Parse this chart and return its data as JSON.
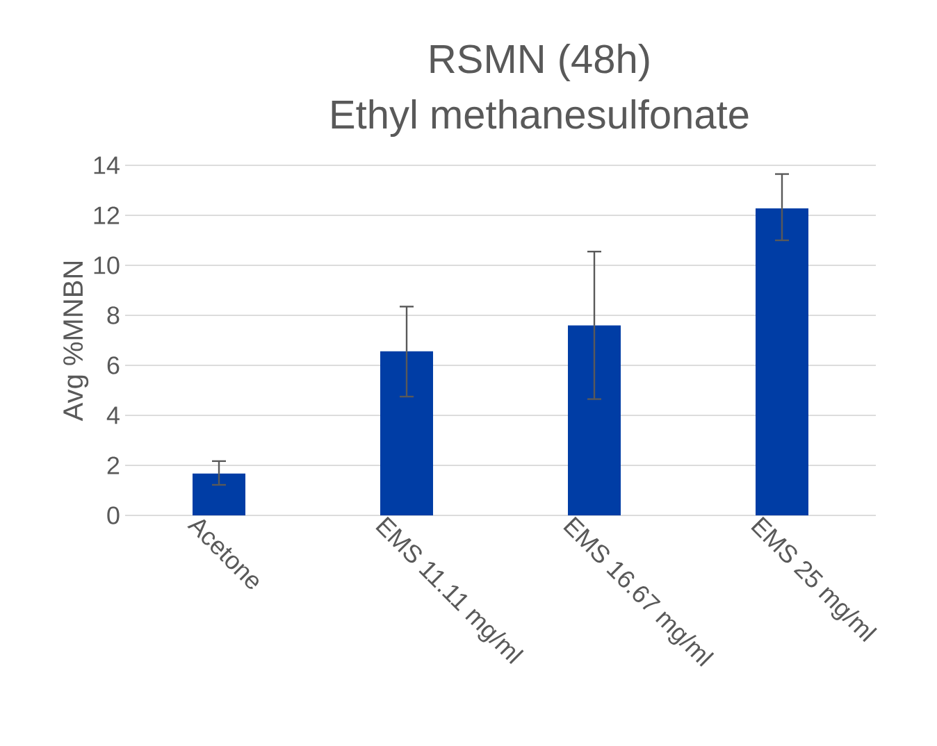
{
  "chart_data": {
    "type": "bar",
    "title": "RSMN (48h)",
    "subtitle": "Ethyl methanesulfonate",
    "ylabel": "Avg %MNBN",
    "categories": [
      "Acetone",
      "EMS 11.11 mg/ml",
      "EMS 16.67 mg/ml",
      "EMS 25 mg/ml"
    ],
    "values": [
      1.67,
      6.56,
      7.6,
      12.28
    ],
    "errors": [
      [
        1.22,
        2.17
      ],
      [
        4.75,
        8.35
      ],
      [
        4.65,
        10.55
      ],
      [
        11.0,
        13.65
      ]
    ],
    "color": "#003da5",
    "ylim": [
      0,
      14
    ],
    "yticks": [
      0,
      2,
      4,
      6,
      8,
      10,
      12,
      14
    ],
    "grid": "y"
  }
}
